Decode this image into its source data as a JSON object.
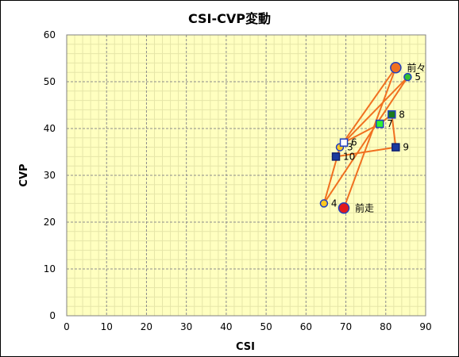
{
  "chart_data": {
    "type": "scatter",
    "title": "CSI-CVP変動",
    "xlabel": "CSI",
    "ylabel": "CVP",
    "xlim": [
      0,
      90
    ],
    "ylim": [
      0,
      60
    ],
    "x_ticks": [
      0,
      10,
      20,
      30,
      40,
      50,
      60,
      70,
      80,
      90
    ],
    "y_ticks": [
      0,
      10,
      20,
      30,
      40,
      50,
      60
    ],
    "grid": true,
    "colors": {
      "plot_bg": "#ffffc0",
      "major_grid": "#8c8c8c",
      "minor_grid": "#e6e6a8",
      "line": "#f07020"
    },
    "points": [
      {
        "label": "前走",
        "x": 69.5,
        "y": 23,
        "shape": "circle",
        "size": "large",
        "fill": "#e31a1c",
        "stroke": "#2040c0"
      },
      {
        "label": "前々",
        "x": 82.5,
        "y": 53,
        "shape": "circle",
        "size": "large",
        "fill": "#f07020",
        "stroke": "#2040c0"
      },
      {
        "label": "3",
        "x": 68.5,
        "y": 36,
        "shape": "circle",
        "size": "small",
        "fill": "#ffc820",
        "stroke": "#2040c0"
      },
      {
        "label": "4",
        "x": 64.5,
        "y": 24,
        "shape": "circle",
        "size": "small",
        "fill": "#ffc820",
        "stroke": "#2040c0"
      },
      {
        "label": "5",
        "x": 85.5,
        "y": 51,
        "shape": "circle",
        "size": "small",
        "fill": "#30c030",
        "stroke": "#2040c0"
      },
      {
        "label": "6",
        "x": 69.5,
        "y": 37,
        "shape": "square",
        "size": "small",
        "fill": "#ffffff",
        "stroke": "#2040c0"
      },
      {
        "label": "7",
        "x": 78.5,
        "y": 41,
        "shape": "square",
        "size": "small",
        "fill": "#30f030",
        "stroke": "#2040c0"
      },
      {
        "label": "8",
        "x": 81.5,
        "y": 43,
        "shape": "square",
        "size": "small",
        "fill": "#1a7a1a",
        "stroke": "#2040c0"
      },
      {
        "label": "9",
        "x": 82.5,
        "y": 36,
        "shape": "square",
        "size": "small",
        "fill": "#1a3aa0",
        "stroke": "#102070"
      },
      {
        "label": "10",
        "x": 67.5,
        "y": 34,
        "shape": "square",
        "size": "small",
        "fill": "#1a3aa0",
        "stroke": "#102070"
      }
    ],
    "connections": [
      [
        "前走",
        "前々"
      ],
      [
        "前々",
        "3"
      ],
      [
        "3",
        "4"
      ],
      [
        "4",
        "5"
      ],
      [
        "5",
        "6"
      ],
      [
        "6",
        "7"
      ],
      [
        "7",
        "8"
      ],
      [
        "8",
        "9"
      ],
      [
        "9",
        "10"
      ]
    ]
  }
}
